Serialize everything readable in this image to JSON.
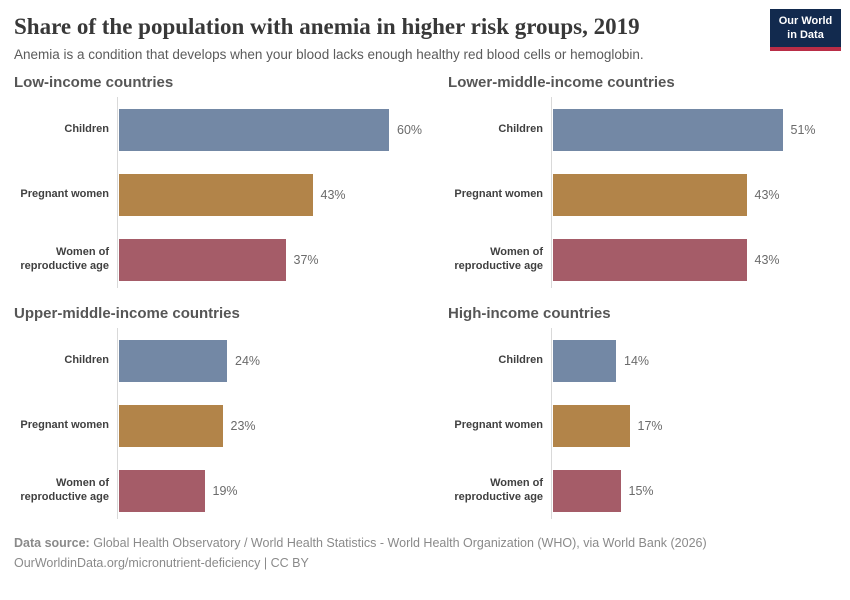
{
  "header": {
    "title": "Share of the population with anemia in higher risk groups, 2019",
    "subtitle": "Anemia is a condition that develops when your blood lacks enough healthy red blood cells or hemoglobin.",
    "logo": {
      "line1": "Our World",
      "line2": "in Data",
      "bg": "#122a4e",
      "accent": "#b92d46"
    }
  },
  "chart_data": {
    "type": "bar",
    "orientation": "horizontal",
    "title": "Share of the population with anemia in higher risk groups, 2019",
    "unit": "%",
    "grid": false,
    "xlim": [
      0,
      66
    ],
    "categories": [
      "Children",
      "Pregnant women",
      "Women of reproductive age"
    ],
    "series_colors": {
      "Children": "#7388a5",
      "Pregnant women": "#b28449",
      "Women of reproductive age": "#a55c68"
    },
    "panels": [
      {
        "title": "Low-income countries",
        "rows": [
          {
            "label": "Children",
            "value": 60,
            "display": "60%",
            "color": "#7388a5"
          },
          {
            "label": "Pregnant women",
            "value": 43,
            "display": "43%",
            "color": "#b28449"
          },
          {
            "label": "Women of reproductive age",
            "value": 37,
            "display": "37%",
            "color": "#a55c68"
          }
        ]
      },
      {
        "title": "Lower-middle-income countries",
        "rows": [
          {
            "label": "Children",
            "value": 51,
            "display": "51%",
            "color": "#7388a5"
          },
          {
            "label": "Pregnant women",
            "value": 43,
            "display": "43%",
            "color": "#b28449"
          },
          {
            "label": "Women of reproductive age",
            "value": 43,
            "display": "43%",
            "color": "#a55c68"
          }
        ]
      },
      {
        "title": "Upper-middle-income countries",
        "rows": [
          {
            "label": "Children",
            "value": 24,
            "display": "24%",
            "color": "#7388a5"
          },
          {
            "label": "Pregnant women",
            "value": 23,
            "display": "23%",
            "color": "#b28449"
          },
          {
            "label": "Women of reproductive age",
            "value": 19,
            "display": "19%",
            "color": "#a55c68"
          }
        ]
      },
      {
        "title": "High-income countries",
        "rows": [
          {
            "label": "Children",
            "value": 14,
            "display": "14%",
            "color": "#7388a5"
          },
          {
            "label": "Pregnant women",
            "value": 17,
            "display": "17%",
            "color": "#b28449"
          },
          {
            "label": "Women of reproductive age",
            "value": 15,
            "display": "15%",
            "color": "#a55c68"
          }
        ]
      }
    ]
  },
  "footer": {
    "source_label": "Data source:",
    "source_text": "Global Health Observatory / World Health Statistics - World Health Organization (WHO), via World Bank (2026)",
    "license": "OurWorldinData.org/micronutrient-deficiency | CC BY"
  }
}
